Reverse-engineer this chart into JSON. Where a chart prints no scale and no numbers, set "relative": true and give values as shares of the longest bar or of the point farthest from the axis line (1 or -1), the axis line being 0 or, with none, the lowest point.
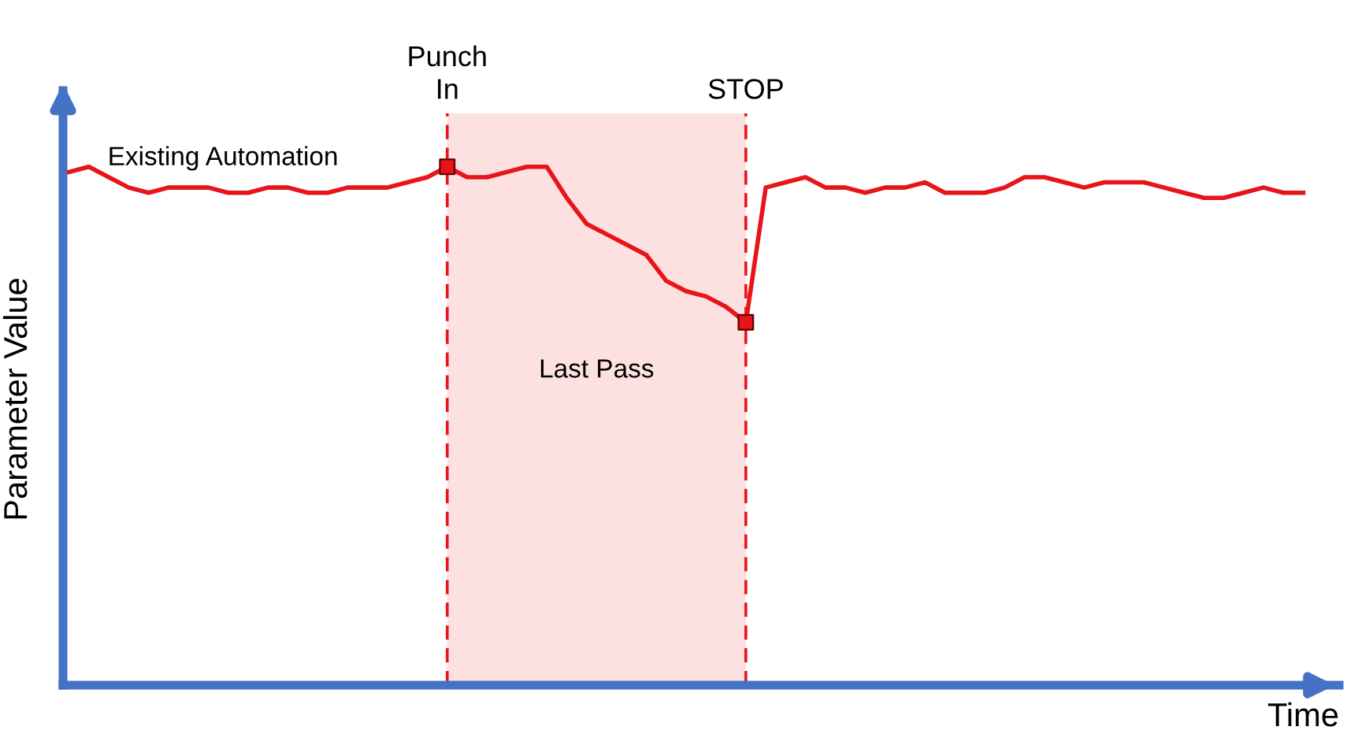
{
  "chart_data": {
    "type": "line",
    "relative": true,
    "xlabel": "Time",
    "ylabel": "Parameter Value",
    "tick_labels": "x",
    "annotations": [
      "Existing Automation"
    ],
    "categories": [
      null,
      null,
      null,
      null,
      null,
      null,
      null,
      null,
      null,
      null,
      null,
      null,
      null,
      null,
      null,
      null,
      null,
      null,
      null,
      "Punch\nIn",
      null,
      null,
      null,
      null,
      null,
      null,
      null,
      null,
      null,
      null,
      null,
      null,
      null,
      null,
      "STOP",
      null,
      null,
      null,
      null,
      null,
      null,
      null,
      null,
      null,
      null,
      null,
      null,
      null,
      null,
      null,
      null,
      null,
      null,
      null,
      null,
      null,
      null,
      null,
      null,
      null,
      null,
      null,
      null
    ],
    "series": [
      {
        "color": "#e8141a",
        "marker": "none",
        "line_style": "solid",
        "values": [
          0.99,
          1.0,
          0.98,
          0.96,
          0.95,
          0.96,
          0.96,
          0.96,
          0.95,
          0.95,
          0.96,
          0.96,
          0.95,
          0.95,
          0.96,
          0.96,
          0.96,
          0.97,
          0.98,
          1.0,
          0.98,
          0.98,
          0.99,
          1.0,
          1.0,
          0.94,
          0.89,
          0.87,
          0.85,
          0.83,
          0.78,
          0.76,
          0.75,
          0.73,
          0.7,
          0.96,
          0.97,
          0.98,
          0.96,
          0.96,
          0.95,
          0.96,
          0.96,
          0.97,
          0.95,
          0.95,
          0.95,
          0.96,
          0.98,
          0.98,
          0.97,
          0.96,
          0.97,
          0.97,
          0.97,
          0.96,
          0.95,
          0.94,
          0.94,
          0.95,
          0.96,
          0.95,
          0.95
        ]
      },
      {
        "type": "scatter",
        "color": "#e8141a",
        "marker": "square",
        "values": [
          null,
          null,
          null,
          null,
          null,
          null,
          null,
          null,
          null,
          null,
          null,
          null,
          null,
          null,
          null,
          null,
          null,
          null,
          null,
          1.0,
          null,
          null,
          null,
          null,
          null,
          null,
          null,
          null,
          null,
          null,
          null,
          null,
          null,
          null,
          0.7,
          null,
          null,
          null,
          null,
          null,
          null,
          null,
          null,
          null,
          null,
          null,
          null,
          null,
          null,
          null,
          null,
          null,
          null,
          null,
          null,
          null,
          null,
          null,
          null,
          null,
          null,
          null,
          null
        ]
      }
    ],
    "ref_lines": [
      {
        "axis": "x",
        "value": "Punch\nIn",
        "color": "#e8141a",
        "line_style": "dashed"
      },
      {
        "axis": "x",
        "value": "STOP",
        "color": "#e8141a",
        "line_style": "dashed"
      }
    ],
    "bands": [
      {
        "axis": "x",
        "from": "Punch\nIn",
        "to": "STOP",
        "label": "Last Pass",
        "color": "#fde0e0"
      }
    ]
  }
}
